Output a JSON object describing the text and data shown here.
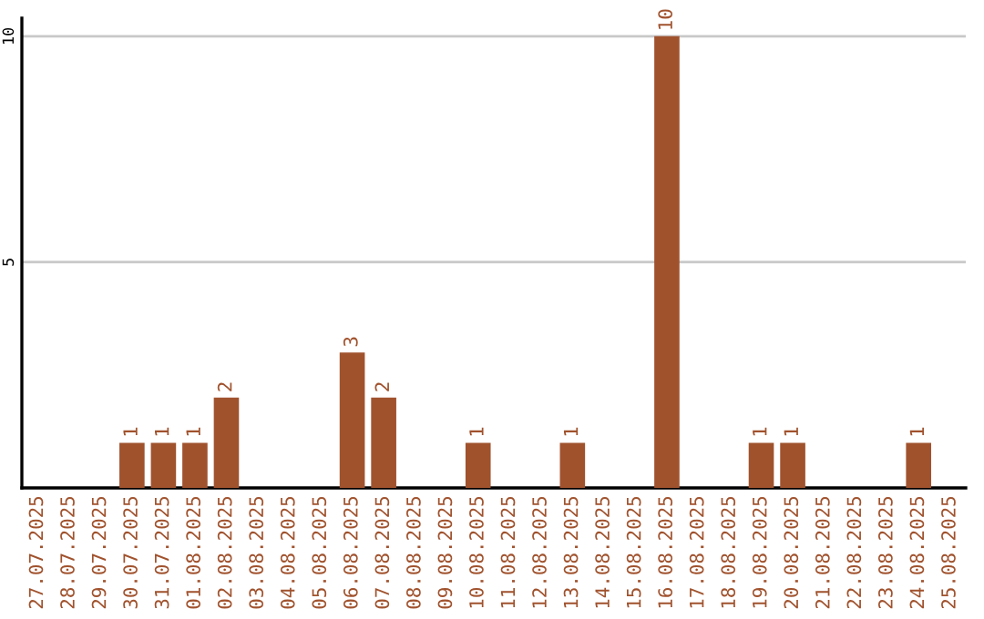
{
  "chart_data": {
    "type": "bar",
    "categories": [
      "27.07.2025",
      "28.07.2025",
      "29.07.2025",
      "30.07.2025",
      "31.07.2025",
      "01.08.2025",
      "02.08.2025",
      "03.08.2025",
      "04.08.2025",
      "05.08.2025",
      "06.08.2025",
      "07.08.2025",
      "08.08.2025",
      "09.08.2025",
      "10.08.2025",
      "11.08.2025",
      "12.08.2025",
      "13.08.2025",
      "14.08.2025",
      "15.08.2025",
      "16.08.2025",
      "17.08.2025",
      "18.08.2025",
      "19.08.2025",
      "20.08.2025",
      "21.08.2025",
      "22.08.2025",
      "23.08.2025",
      "24.08.2025",
      "25.08.2025"
    ],
    "values": [
      0,
      0,
      0,
      1,
      1,
      1,
      2,
      0,
      0,
      0,
      3,
      2,
      0,
      0,
      1,
      0,
      0,
      1,
      0,
      0,
      10,
      0,
      0,
      1,
      1,
      0,
      0,
      0,
      1,
      0
    ],
    "value_labels": [
      null,
      null,
      null,
      "1",
      "1",
      "1",
      "2",
      null,
      null,
      null,
      "3",
      "2",
      null,
      null,
      "1",
      null,
      null,
      "1",
      null,
      null,
      "10",
      null,
      null,
      "1",
      "1",
      null,
      null,
      null,
      "1",
      null
    ],
    "color": "#a0522d",
    "ylim": [
      0,
      10.4
    ],
    "yticks": [
      5,
      10
    ],
    "grid": "y",
    "legend": false
  }
}
